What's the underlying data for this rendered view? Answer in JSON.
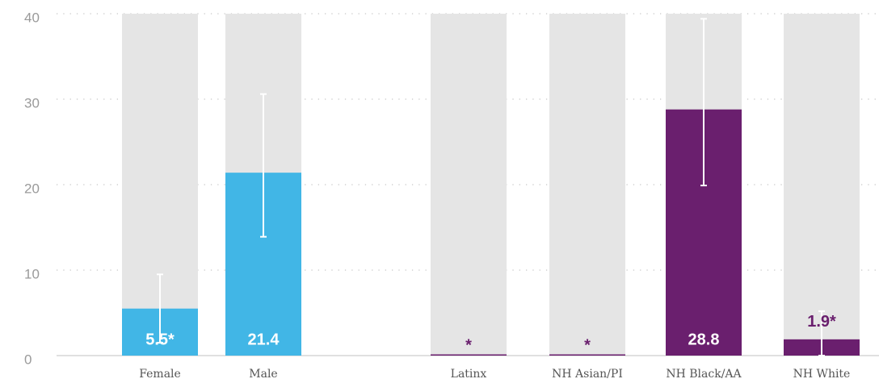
{
  "chart_data": {
    "type": "bar",
    "categories": [
      "Female",
      "Male",
      "Latinx",
      "NH Asian/PI",
      "NH Black/AA",
      "NH White"
    ],
    "values": [
      5.5,
      21.4,
      null,
      null,
      28.8,
      1.9
    ],
    "value_labels": [
      "5.5*",
      "21.4",
      "*",
      "*",
      "28.8",
      "1.9*"
    ],
    "error_low": [
      1.5,
      13.9,
      null,
      null,
      19.9,
      0
    ],
    "error_high": [
      9.5,
      30.6,
      null,
      null,
      39.4,
      5.2
    ],
    "colors": [
      "#41b6e6",
      "#41b6e6",
      "#6a1f6e",
      "#6a1f6e",
      "#6a1f6e",
      "#6a1f6e"
    ],
    "background_color": "#e5e5e5",
    "ylim": [
      0,
      40
    ],
    "yticks": [
      0,
      10,
      20,
      30,
      40
    ],
    "grid": true
  }
}
